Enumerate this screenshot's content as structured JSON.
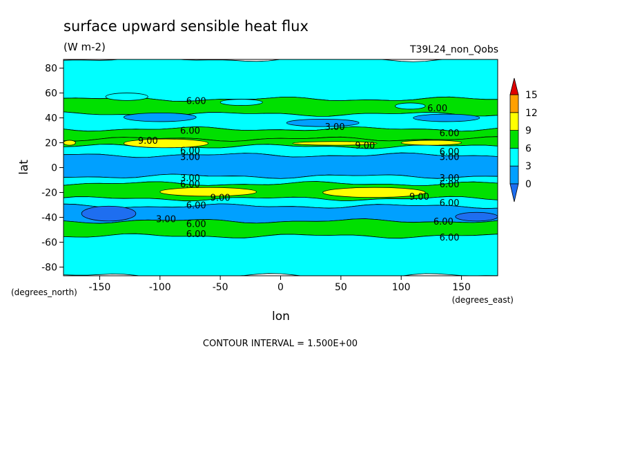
{
  "chart_data": {
    "type": "contour",
    "title": "surface upward sensible heat flux",
    "units": "(W m-2)",
    "run_label": "T39L24_non_Qobs",
    "xlabel": "lon",
    "ylabel": "lat",
    "x_unit_label": "(degrees_east)",
    "y_unit_label": "(degrees_north)",
    "xlim": [
      -180,
      180
    ],
    "ylim": [
      -87,
      87
    ],
    "xticks": [
      -150,
      -100,
      -50,
      0,
      50,
      100,
      150
    ],
    "yticks": [
      80,
      60,
      40,
      20,
      0,
      -20,
      -40,
      -60,
      -80
    ],
    "xtick_labels": [
      "-150",
      "-100",
      "-50",
      "0",
      "50",
      "100",
      "150"
    ],
    "ytick_labels": [
      "80",
      "60",
      "40",
      "20",
      "0",
      "-20",
      "-40",
      "-60",
      "-80"
    ],
    "contour_interval_text": "CONTOUR INTERVAL = 1.500E+00",
    "colorbar": {
      "levels": [
        0,
        3,
        6,
        9,
        12,
        15
      ],
      "level_labels": [
        "0",
        "3",
        "6",
        "9",
        "12",
        "15"
      ],
      "colors": [
        "#1e6ef0",
        "#00a0ff",
        "#00ffff",
        "#00e000",
        "#ffff00",
        "#ffa000",
        "#e00000"
      ]
    },
    "colors": {
      "below_0": "#1e6ef0",
      "c0_3": "#00a0ff",
      "c3_6": "#00ffff",
      "c6_9": "#00e000",
      "c9_12": "#ffff00",
      "c12_15": "#ffa000",
      "above_15": "#e00000"
    },
    "bands": [
      {
        "lat": [
          55,
          87
        ],
        "level": "3-6"
      },
      {
        "lat": [
          43,
          55
        ],
        "level": "6-9"
      },
      {
        "lat": [
          31,
          43
        ],
        "level": "3-6"
      },
      {
        "lat": [
          23,
          31
        ],
        "level": "6-9"
      },
      {
        "lat": [
          17,
          23
        ],
        "level": "6-9"
      },
      {
        "lat": [
          10,
          17
        ],
        "level": "3-6"
      },
      {
        "lat": [
          -7,
          10
        ],
        "level": "0-3"
      },
      {
        "lat": [
          -13,
          -7
        ],
        "level": "3-6"
      },
      {
        "lat": [
          -25,
          -13
        ],
        "level": "6-9"
      },
      {
        "lat": [
          -31,
          -25
        ],
        "level": "3-6"
      },
      {
        "lat": [
          -43,
          -31
        ],
        "level": "0-3"
      },
      {
        "lat": [
          -55,
          -43
        ],
        "level": "6-9"
      },
      {
        "lat": [
          -87,
          -55
        ],
        "level": "3-6"
      }
    ],
    "patches": [
      {
        "lon": [
          -130,
          -70
        ],
        "lat": [
          37,
          44
        ],
        "level": "0-3"
      },
      {
        "lon": [
          5,
          65
        ],
        "lat": [
          33,
          39
        ],
        "level": "0-3"
      },
      {
        "lon": [
          110,
          165
        ],
        "lat": [
          37,
          43
        ],
        "level": "0-3"
      },
      {
        "lon": [
          -145,
          -110
        ],
        "lat": [
          54,
          60
        ],
        "level": "3-6"
      },
      {
        "lon": [
          -50,
          -15
        ],
        "lat": [
          50,
          55
        ],
        "level": "3-6"
      },
      {
        "lon": [
          95,
          120
        ],
        "lat": [
          47,
          52
        ],
        "level": "3-6"
      },
      {
        "lon": [
          -130,
          -60
        ],
        "lat": [
          16,
          23
        ],
        "level": "9-12"
      },
      {
        "lon": [
          10,
          80
        ],
        "lat": [
          18,
          21
        ],
        "level": "9-12"
      },
      {
        "lon": [
          100,
          150
        ],
        "lat": [
          18,
          22
        ],
        "level": "9-12"
      },
      {
        "lon": [
          -180,
          -170
        ],
        "lat": [
          18,
          22
        ],
        "level": "9-12"
      },
      {
        "lon": [
          -100,
          -20
        ],
        "lat": [
          -23,
          -16
        ],
        "level": "9-12"
      },
      {
        "lon": [
          35,
          120
        ],
        "lat": [
          -24,
          -16
        ],
        "level": "9-12"
      },
      {
        "lon": [
          -165,
          -120
        ],
        "lat": [
          -43,
          -31
        ],
        "level": "below-0"
      },
      {
        "lon": [
          145,
          180
        ],
        "lat": [
          -43,
          -36
        ],
        "level": "below-0"
      }
    ],
    "contour_labels": [
      {
        "text": "6.00",
        "lon": -70,
        "lat": 54
      },
      {
        "text": "6.00",
        "lon": 130,
        "lat": 48
      },
      {
        "text": "3.00",
        "lon": 45,
        "lat": 33
      },
      {
        "text": "6.00",
        "lon": -75,
        "lat": 30
      },
      {
        "text": "6.00",
        "lon": 140,
        "lat": 28
      },
      {
        "text": "9.00",
        "lon": -110,
        "lat": 22
      },
      {
        "text": "9.00",
        "lon": 70,
        "lat": 18
      },
      {
        "text": "6.00",
        "lon": -75,
        "lat": 14
      },
      {
        "text": "3.00",
        "lon": -75,
        "lat": 9
      },
      {
        "text": "6.00",
        "lon": 140,
        "lat": 13
      },
      {
        "text": "3.00",
        "lon": 140,
        "lat": 9
      },
      {
        "text": "3.00",
        "lon": -75,
        "lat": -8
      },
      {
        "text": "6.00",
        "lon": -75,
        "lat": -13
      },
      {
        "text": "3.00",
        "lon": 140,
        "lat": -8
      },
      {
        "text": "6.00",
        "lon": 140,
        "lat": -13
      },
      {
        "text": "9.00",
        "lon": -50,
        "lat": -24
      },
      {
        "text": "9.00",
        "lon": 115,
        "lat": -23
      },
      {
        "text": "6.00",
        "lon": -70,
        "lat": -30
      },
      {
        "text": "6.00",
        "lon": 140,
        "lat": -28
      },
      {
        "text": "3.00",
        "lon": -95,
        "lat": -41
      },
      {
        "text": "6.00",
        "lon": -70,
        "lat": -45
      },
      {
        "text": "6.00",
        "lon": 135,
        "lat": -43
      },
      {
        "text": "6.00",
        "lon": -70,
        "lat": -53
      },
      {
        "text": "6.00",
        "lon": 140,
        "lat": -56
      }
    ]
  }
}
